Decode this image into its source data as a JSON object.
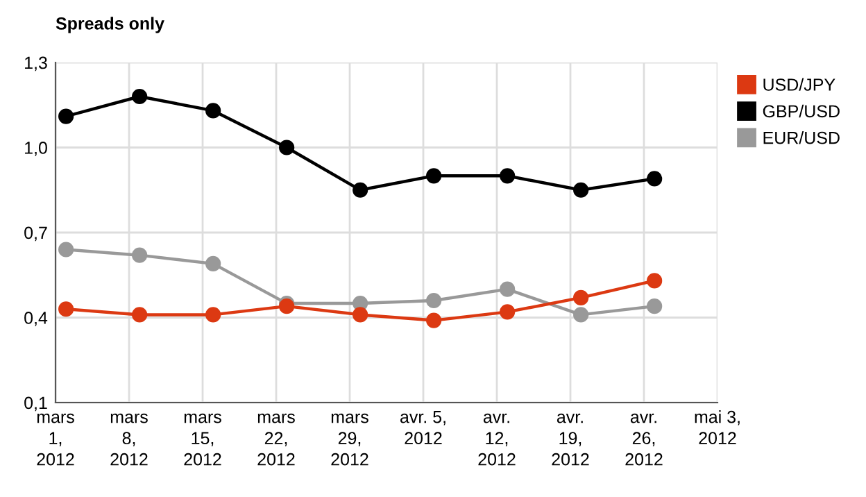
{
  "chart_data": {
    "type": "line",
    "title": "Spreads only",
    "x": [
      "2012-03-02",
      "2012-03-09",
      "2012-03-16",
      "2012-03-23",
      "2012-03-30",
      "2012-04-06",
      "2012-04-13",
      "2012-04-20",
      "2012-04-27"
    ],
    "series": [
      {
        "name": "USD/JPY",
        "color": "#dc3912",
        "values": [
          0.43,
          0.41,
          0.41,
          0.44,
          0.41,
          0.39,
          0.42,
          0.47,
          0.53
        ]
      },
      {
        "name": "GBP/USD",
        "color": "#000000",
        "values": [
          1.11,
          1.18,
          1.13,
          1.0,
          0.85,
          0.9,
          0.9,
          0.85,
          0.89
        ]
      },
      {
        "name": "EUR/USD",
        "color": "#999999",
        "values": [
          0.64,
          0.62,
          0.59,
          0.45,
          0.45,
          0.46,
          0.5,
          0.41,
          0.44
        ]
      }
    ],
    "xlim": [
      "2012-03-01",
      "2012-05-03"
    ],
    "xticks": [
      {
        "value": "2012-03-01",
        "label": "mars\n1,\n2012"
      },
      {
        "value": "2012-03-08",
        "label": "mars\n8,\n2012"
      },
      {
        "value": "2012-03-15",
        "label": "mars\n15,\n2012"
      },
      {
        "value": "2012-03-22",
        "label": "mars\n22,\n2012"
      },
      {
        "value": "2012-03-29",
        "label": "mars\n29,\n2012"
      },
      {
        "value": "2012-04-05",
        "label": "avr. 5,\n2012\n"
      },
      {
        "value": "2012-04-12",
        "label": "avr.\n12,\n2012"
      },
      {
        "value": "2012-04-19",
        "label": "avr.\n19,\n2012"
      },
      {
        "value": "2012-04-26",
        "label": "avr.\n26,\n2012"
      },
      {
        "value": "2012-05-03",
        "label": "mai 3,\n2012\n"
      }
    ],
    "ylim": [
      0.1,
      1.3
    ],
    "yticks": [
      {
        "value": 0.1,
        "label": "0,1"
      },
      {
        "value": 0.4,
        "label": "0,4"
      },
      {
        "value": 0.7,
        "label": "0,7"
      },
      {
        "value": 1.0,
        "label": "1,0"
      },
      {
        "value": 1.3,
        "label": "1,3"
      }
    ],
    "grid": true,
    "legend": "top right",
    "marker": "circle",
    "line_style": "solid"
  }
}
